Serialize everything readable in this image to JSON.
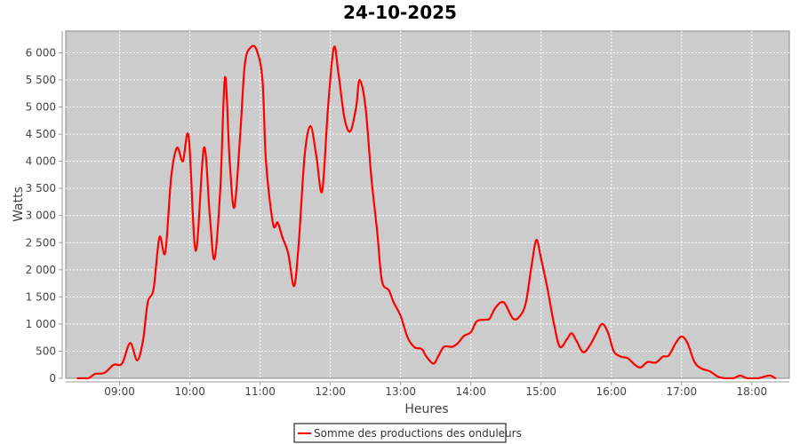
{
  "chart_data": {
    "type": "line",
    "title": "24-10-2025",
    "xlabel": "Heures",
    "ylabel": "Watts",
    "xlim": [
      "08:14",
      "18:32"
    ],
    "ylim": [
      0,
      6400
    ],
    "grid": true,
    "legend_placement": "bottom",
    "background": "#cccccc",
    "x_ticks": [
      "09:00",
      "10:00",
      "11:00",
      "12:00",
      "13:00",
      "14:00",
      "15:00",
      "16:00",
      "17:00",
      "18:00"
    ],
    "y_ticks": [
      0,
      500,
      1000,
      1500,
      2000,
      2500,
      3000,
      3500,
      4000,
      4500,
      5000,
      5500,
      6000
    ],
    "y_tick_labels": [
      "0",
      "500",
      "1 000",
      "1 500",
      "2 000",
      "2 500",
      "3 000",
      "3 500",
      "4 000",
      "4 500",
      "5 000",
      "5 500",
      "6 000"
    ],
    "series": [
      {
        "name": "Somme des productions des onduleurs",
        "color": "#ff0000",
        "x": [
          "08:24",
          "08:33",
          "08:39",
          "08:47",
          "08:55",
          "09:02",
          "09:09",
          "09:15",
          "09:20",
          "09:24",
          "09:29",
          "09:34",
          "09:39",
          "09:44",
          "09:49",
          "09:54",
          "09:59",
          "10:05",
          "10:12",
          "10:17",
          "10:21",
          "10:26",
          "10:30",
          "10:34",
          "10:38",
          "10:43",
          "10:47",
          "10:52",
          "10:57",
          "11:02",
          "11:05",
          "11:11",
          "11:15",
          "11:19",
          "11:24",
          "11:29",
          "11:33",
          "11:38",
          "11:43",
          "11:48",
          "11:53",
          "11:58",
          "12:03",
          "12:07",
          "12:12",
          "12:17",
          "12:22",
          "12:25",
          "12:30",
          "12:35",
          "12:40",
          "12:44",
          "12:50",
          "12:54",
          "13:00",
          "13:06",
          "13:12",
          "13:18",
          "13:22",
          "13:28",
          "13:32",
          "13:37",
          "13:44",
          "13:49",
          "13:54",
          "14:00",
          "14:05",
          "14:12",
          "14:16",
          "14:21",
          "14:28",
          "14:36",
          "14:42",
          "14:47",
          "14:52",
          "14:56",
          "15:00",
          "15:05",
          "15:11",
          "15:16",
          "15:22",
          "15:26",
          "15:30",
          "15:36",
          "15:42",
          "15:47",
          "15:52",
          "15:57",
          "16:02",
          "16:08",
          "16:14",
          "16:20",
          "16:25",
          "16:31",
          "16:38",
          "16:44",
          "16:49",
          "16:55",
          "17:00",
          "17:05",
          "17:11",
          "17:17",
          "17:24",
          "17:31",
          "17:37",
          "17:44",
          "17:50",
          "17:56",
          "18:05",
          "18:15",
          "18:20"
        ],
        "values": [
          0,
          0,
          80,
          100,
          250,
          270,
          650,
          330,
          700,
          1400,
          1650,
          2600,
          2320,
          3700,
          4250,
          4000,
          4450,
          2350,
          4250,
          3000,
          2200,
          3500,
          5550,
          4000,
          3150,
          4500,
          5800,
          6100,
          6050,
          5500,
          4000,
          2850,
          2870,
          2600,
          2300,
          1700,
          2500,
          4100,
          4650,
          4100,
          3450,
          5000,
          6100,
          5600,
          4800,
          4550,
          5000,
          5500,
          5000,
          3700,
          2700,
          1800,
          1620,
          1400,
          1150,
          750,
          570,
          540,
          400,
          270,
          400,
          580,
          580,
          650,
          780,
          850,
          1050,
          1080,
          1100,
          1300,
          1400,
          1100,
          1150,
          1400,
          2100,
          2550,
          2200,
          1700,
          1000,
          580,
          720,
          830,
          700,
          480,
          620,
          820,
          1000,
          850,
          500,
          400,
          370,
          250,
          200,
          300,
          290,
          400,
          420,
          650,
          770,
          650,
          300,
          180,
          130,
          30,
          0,
          0,
          50,
          0,
          0,
          50,
          0
        ]
      }
    ]
  }
}
